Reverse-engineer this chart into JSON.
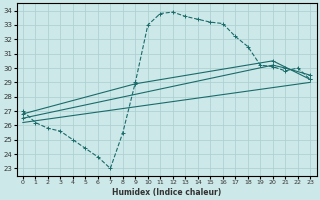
{
  "xlabel": "Humidex (Indice chaleur)",
  "background_color": "#cde8e8",
  "grid_color": "#aacece",
  "line_color": "#1a6b6b",
  "xlim": [
    -0.5,
    23.5
  ],
  "ylim": [
    22.5,
    34.5
  ],
  "xticks": [
    0,
    1,
    2,
    3,
    4,
    5,
    6,
    7,
    8,
    9,
    10,
    11,
    12,
    13,
    14,
    15,
    16,
    17,
    18,
    19,
    20,
    21,
    22,
    23
  ],
  "yticks": [
    23,
    24,
    25,
    26,
    27,
    28,
    29,
    30,
    31,
    32,
    33,
    34
  ],
  "main_curve": {
    "x": [
      0,
      1,
      2,
      3,
      4,
      5,
      6,
      7,
      8,
      9,
      10,
      11,
      12,
      13,
      14,
      15,
      16,
      17,
      18,
      19,
      20,
      21,
      22,
      23
    ],
    "y": [
      27.0,
      26.2,
      25.8,
      25.6,
      25.0,
      24.4,
      23.8,
      23.0,
      25.5,
      29.0,
      33.0,
      33.8,
      33.9,
      33.6,
      33.4,
      33.2,
      33.1,
      32.2,
      31.5,
      30.2,
      30.1,
      29.8,
      30.0,
      29.2
    ]
  },
  "line1": {
    "x": [
      0,
      9,
      20,
      23
    ],
    "y": [
      26.8,
      28.9,
      30.5,
      29.2
    ]
  },
  "line2": {
    "x": [
      0,
      20,
      21,
      23
    ],
    "y": [
      26.5,
      30.2,
      30.0,
      29.5
    ]
  },
  "line3": {
    "x": [
      0,
      23
    ],
    "y": [
      26.2,
      29.0
    ]
  }
}
